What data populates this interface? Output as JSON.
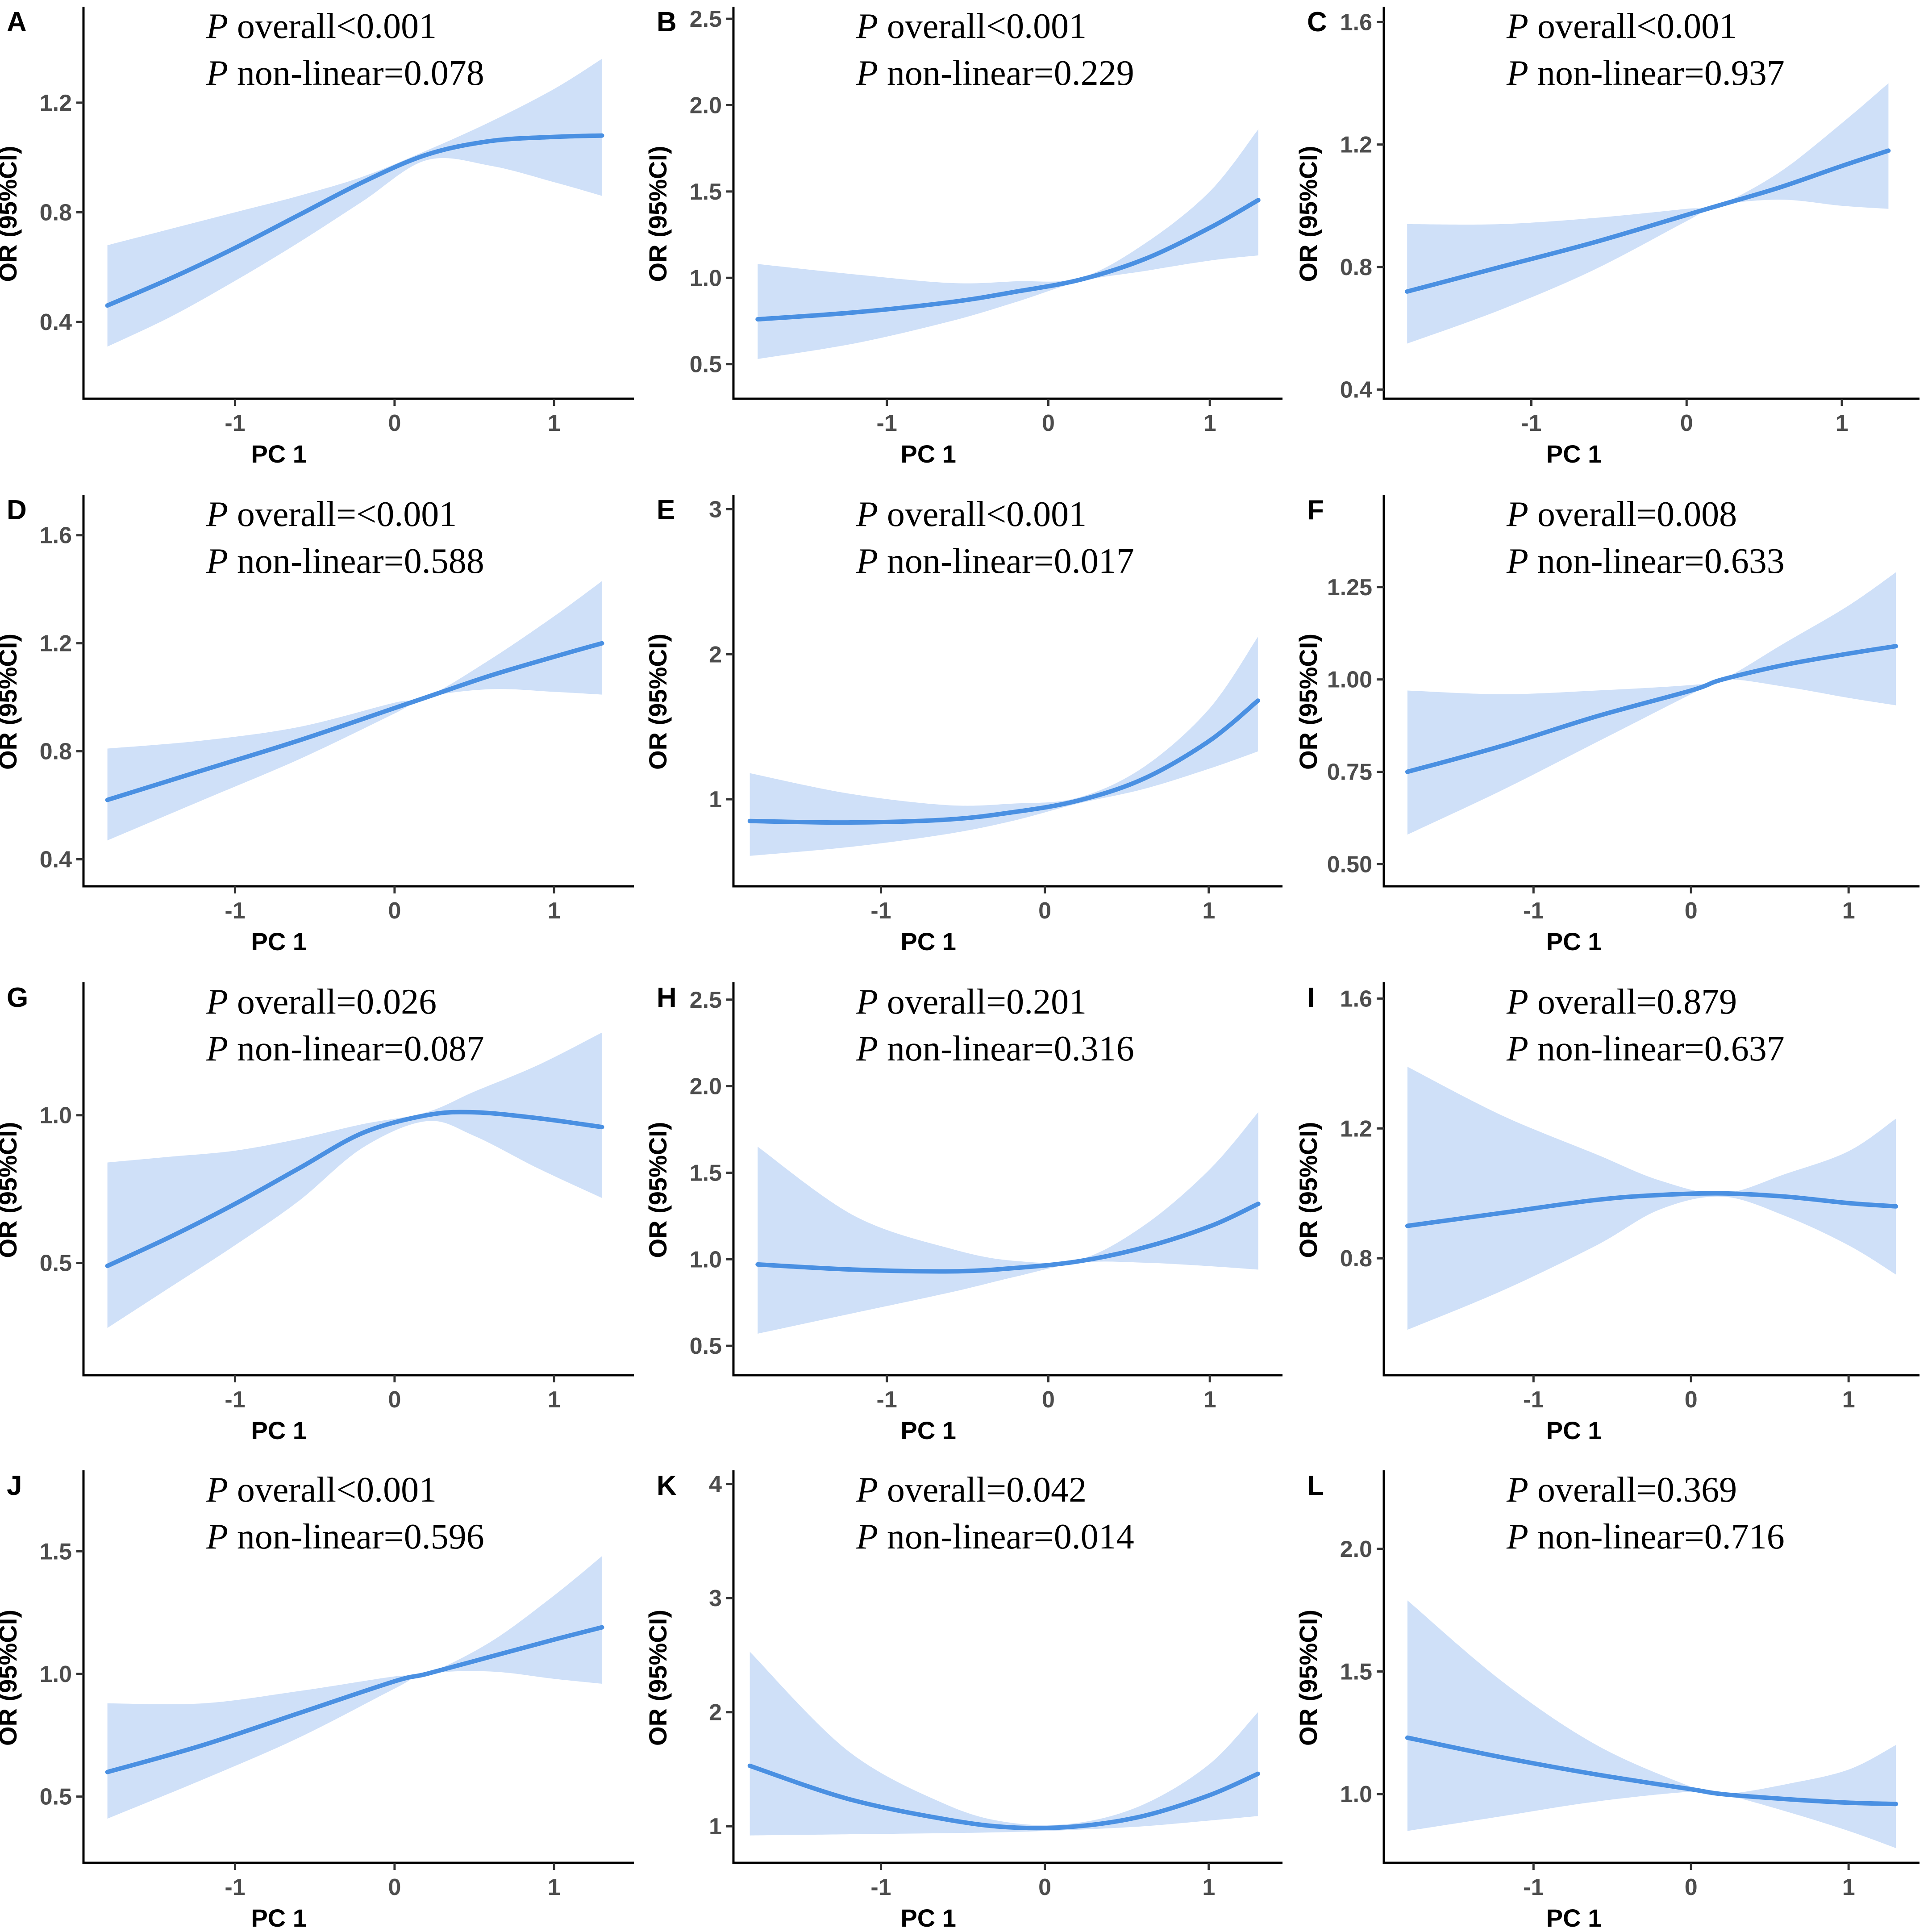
{
  "colors": {
    "line": "#4a90e2",
    "band": "#cfe0f8",
    "axis": "#000000",
    "tick_label": "#4d4d4d"
  },
  "chart_data": [
    {
      "panel": "A",
      "type": "line",
      "xlabel": "PC 1",
      "ylabel": "OR (95%CI)",
      "xlim": [
        -1.95,
        1.5
      ],
      "ylim": [
        0.12,
        1.55
      ],
      "xticks": [
        -1,
        0,
        1
      ],
      "xtick_labels": [
        "-1",
        "0",
        "1"
      ],
      "yticks": [
        0.4,
        0.8,
        1.2
      ],
      "ytick_labels": [
        "0.4",
        "0.8",
        "1.2"
      ],
      "annotation": {
        "p": "P",
        "line1": " overall<0.001",
        "line2": " non-linear=0.078"
      },
      "x": [
        -1.8,
        -1.4,
        -1.0,
        -0.6,
        -0.2,
        0.2,
        0.6,
        1.0,
        1.3
      ],
      "y": [
        0.46,
        0.56,
        0.67,
        0.79,
        0.91,
        1.01,
        1.06,
        1.075,
        1.08
      ],
      "lower": [
        0.31,
        0.42,
        0.55,
        0.69,
        0.84,
        0.99,
        0.97,
        0.91,
        0.86
      ],
      "upper": [
        0.68,
        0.74,
        0.8,
        0.86,
        0.93,
        1.025,
        1.13,
        1.25,
        1.36
      ]
    },
    {
      "panel": "B",
      "type": "line",
      "xlabel": "PC 1",
      "ylabel": "OR (95%CI)",
      "xlim": [
        -1.95,
        1.45
      ],
      "ylim": [
        0.3,
        2.57
      ],
      "xticks": [
        -1,
        0,
        1
      ],
      "xtick_labels": [
        "-1",
        "0",
        "1"
      ],
      "yticks": [
        0.5,
        1.0,
        1.5,
        2.0,
        2.5
      ],
      "ytick_labels": [
        "0.5",
        "1.0",
        "1.5",
        "2.0",
        "2.5"
      ],
      "annotation": {
        "p": "P",
        "line1": " overall<0.001",
        "line2": " non-linear=0.229"
      },
      "x": [
        -1.8,
        -1.2,
        -0.6,
        -0.2,
        0.2,
        0.6,
        1.0,
        1.3
      ],
      "y": [
        0.76,
        0.8,
        0.86,
        0.92,
        0.99,
        1.11,
        1.29,
        1.45
      ],
      "lower": [
        0.53,
        0.62,
        0.75,
        0.86,
        0.98,
        1.04,
        1.1,
        1.13
      ],
      "upper": [
        1.08,
        1.02,
        0.97,
        0.98,
        1.0,
        1.2,
        1.5,
        1.86
      ]
    },
    {
      "panel": "C",
      "type": "line",
      "xlabel": "PC 1",
      "ylabel": "OR (95%CI)",
      "xlim": [
        -1.95,
        1.5
      ],
      "ylim": [
        0.37,
        1.65
      ],
      "xticks": [
        -1,
        0,
        1
      ],
      "xtick_labels": [
        "-1",
        "0",
        "1"
      ],
      "yticks": [
        0.4,
        0.8,
        1.2,
        1.6
      ],
      "ytick_labels": [
        "0.4",
        "0.8",
        "1.2",
        "1.6"
      ],
      "annotation": {
        "p": "P",
        "line1": " overall<0.001",
        "line2": " non-linear=0.937"
      },
      "x": [
        -1.8,
        -1.2,
        -0.6,
        0.0,
        0.2,
        0.6,
        1.0,
        1.3
      ],
      "y": [
        0.72,
        0.8,
        0.88,
        0.97,
        1.0,
        1.06,
        1.13,
        1.18
      ],
      "lower": [
        0.55,
        0.66,
        0.79,
        0.95,
        1.0,
        1.02,
        1.0,
        0.99
      ],
      "upper": [
        0.94,
        0.94,
        0.96,
        0.99,
        1.0,
        1.11,
        1.27,
        1.4
      ]
    },
    {
      "panel": "D",
      "type": "line",
      "xlabel": "PC 1",
      "ylabel": "OR (95%CI)",
      "xlim": [
        -1.95,
        1.5
      ],
      "ylim": [
        0.3,
        1.75
      ],
      "xticks": [
        -1,
        0,
        1
      ],
      "xtick_labels": [
        "-1",
        "0",
        "1"
      ],
      "yticks": [
        0.4,
        0.8,
        1.2,
        1.6
      ],
      "ytick_labels": [
        "0.4",
        "0.8",
        "1.2",
        "1.6"
      ],
      "annotation": {
        "p": "P",
        "line1": " overall=<0.001",
        "line2": " non-linear=0.588"
      },
      "x": [
        -1.8,
        -1.2,
        -0.6,
        0.0,
        0.2,
        0.6,
        1.0,
        1.3
      ],
      "y": [
        0.62,
        0.73,
        0.84,
        0.96,
        1.0,
        1.08,
        1.15,
        1.2
      ],
      "lower": [
        0.47,
        0.62,
        0.77,
        0.94,
        1.0,
        1.03,
        1.02,
        1.01
      ],
      "upper": [
        0.81,
        0.84,
        0.89,
        0.98,
        1.0,
        1.14,
        1.3,
        1.43
      ]
    },
    {
      "panel": "E",
      "type": "line",
      "xlabel": "PC 1",
      "ylabel": "OR (95%CI)",
      "xlim": [
        -1.9,
        1.45
      ],
      "ylim": [
        0.4,
        3.1
      ],
      "xticks": [
        -1,
        0,
        1
      ],
      "xtick_labels": [
        "-1",
        "0",
        "1"
      ],
      "yticks": [
        1,
        2,
        3
      ],
      "ytick_labels": [
        "1",
        "2",
        "3"
      ],
      "annotation": {
        "p": "P",
        "line1": " overall<0.001",
        "line2": " non-linear=0.017"
      },
      "x": [
        -1.8,
        -1.2,
        -0.6,
        -0.2,
        0.2,
        0.6,
        1.0,
        1.3
      ],
      "y": [
        0.85,
        0.84,
        0.86,
        0.91,
        0.99,
        1.14,
        1.4,
        1.68
      ],
      "lower": [
        0.61,
        0.67,
        0.76,
        0.85,
        0.97,
        1.07,
        1.21,
        1.33
      ],
      "upper": [
        1.18,
        1.04,
        0.96,
        0.97,
        1.01,
        1.22,
        1.62,
        2.12
      ]
    },
    {
      "panel": "F",
      "type": "line",
      "xlabel": "PC 1",
      "ylabel": "OR (95%CI)",
      "xlim": [
        -1.95,
        1.45
      ],
      "ylim": [
        0.44,
        1.5
      ],
      "xticks": [
        -1,
        0,
        1
      ],
      "xtick_labels": [
        "-1",
        "0",
        "1"
      ],
      "yticks": [
        0.5,
        0.75,
        1.0,
        1.25
      ],
      "ytick_labels": [
        "0.50",
        "0.75",
        "1.00",
        "1.25"
      ],
      "annotation": {
        "p": "P",
        "line1": " overall=0.008",
        "line2": " non-linear=0.633"
      },
      "x": [
        -1.8,
        -1.2,
        -0.6,
        0.0,
        0.2,
        0.6,
        1.0,
        1.3
      ],
      "y": [
        0.75,
        0.82,
        0.9,
        0.97,
        1.0,
        1.04,
        1.07,
        1.09
      ],
      "lower": [
        0.58,
        0.7,
        0.83,
        0.96,
        1.0,
        0.98,
        0.95,
        0.93
      ],
      "upper": [
        0.97,
        0.96,
        0.97,
        0.985,
        1.0,
        1.1,
        1.2,
        1.29
      ]
    },
    {
      "panel": "G",
      "type": "line",
      "xlabel": "PC 1",
      "ylabel": "OR (95%CI)",
      "xlim": [
        -1.95,
        1.5
      ],
      "ylim": [
        0.12,
        1.45
      ],
      "xticks": [
        -1,
        0,
        1
      ],
      "xtick_labels": [
        "-1",
        "0",
        "1"
      ],
      "yticks": [
        0.5,
        1.0
      ],
      "ytick_labels": [
        "0.5",
        "1.0"
      ],
      "annotation": {
        "p": "P",
        "line1": " overall=0.026",
        "line2": " non-linear=0.087"
      },
      "x": [
        -1.8,
        -1.4,
        -1.0,
        -0.6,
        -0.2,
        0.2,
        0.5,
        0.9,
        1.3
      ],
      "y": [
        0.49,
        0.59,
        0.7,
        0.82,
        0.94,
        1.0,
        1.01,
        0.99,
        0.96
      ],
      "lower": [
        0.28,
        0.42,
        0.56,
        0.71,
        0.89,
        0.98,
        0.93,
        0.82,
        0.72
      ],
      "upper": [
        0.84,
        0.86,
        0.88,
        0.92,
        0.97,
        1.01,
        1.08,
        1.17,
        1.28
      ]
    },
    {
      "panel": "H",
      "type": "line",
      "xlabel": "PC 1",
      "ylabel": "OR (95%CI)",
      "xlim": [
        -1.95,
        1.45
      ],
      "ylim": [
        0.33,
        2.6
      ],
      "xticks": [
        -1,
        0,
        1
      ],
      "xtick_labels": [
        "-1",
        "0",
        "1"
      ],
      "yticks": [
        0.5,
        1.0,
        1.5,
        2.0,
        2.5
      ],
      "ytick_labels": [
        "0.5",
        "1.0",
        "1.5",
        "2.0",
        "2.5"
      ],
      "annotation": {
        "p": "P",
        "line1": " overall=0.201",
        "line2": " non-linear=0.316"
      },
      "x": [
        -1.8,
        -1.2,
        -0.6,
        -0.2,
        0.2,
        0.6,
        1.0,
        1.3
      ],
      "y": [
        0.97,
        0.94,
        0.93,
        0.95,
        0.99,
        1.07,
        1.19,
        1.32
      ],
      "lower": [
        0.57,
        0.69,
        0.81,
        0.9,
        0.98,
        0.98,
        0.96,
        0.94
      ],
      "upper": [
        1.65,
        1.25,
        1.06,
        0.99,
        1.0,
        1.2,
        1.52,
        1.85
      ]
    },
    {
      "panel": "I",
      "type": "line",
      "xlabel": "PC 1",
      "ylabel": "OR (95%CI)",
      "xlim": [
        -1.95,
        1.45
      ],
      "ylim": [
        0.44,
        1.65
      ],
      "xticks": [
        -1,
        0,
        1
      ],
      "xtick_labels": [
        "-1",
        "0",
        "1"
      ],
      "yticks": [
        0.8,
        1.2,
        1.6
      ],
      "ytick_labels": [
        "0.8",
        "1.2",
        "1.6"
      ],
      "annotation": {
        "p": "P",
        "line1": " overall=0.879",
        "line2": " non-linear=0.637"
      },
      "x": [
        -1.8,
        -1.2,
        -0.6,
        -0.2,
        0.2,
        0.6,
        1.0,
        1.3
      ],
      "y": [
        0.9,
        0.94,
        0.98,
        0.995,
        1.0,
        0.99,
        0.97,
        0.96
      ],
      "lower": [
        0.58,
        0.7,
        0.84,
        0.95,
        0.99,
        0.93,
        0.84,
        0.75
      ],
      "upper": [
        1.39,
        1.24,
        1.12,
        1.04,
        1.0,
        1.06,
        1.13,
        1.23
      ]
    },
    {
      "panel": "J",
      "type": "line",
      "xlabel": "PC 1",
      "ylabel": "OR (95%CI)",
      "xlim": [
        -1.95,
        1.5
      ],
      "ylim": [
        0.23,
        1.83
      ],
      "xticks": [
        -1,
        0,
        1
      ],
      "xtick_labels": [
        "-1",
        "0",
        "1"
      ],
      "yticks": [
        0.5,
        1.0,
        1.5
      ],
      "ytick_labels": [
        "0.5",
        "1.0",
        "1.5"
      ],
      "annotation": {
        "p": "P",
        "line1": " overall<0.001",
        "line2": " non-linear=0.596"
      },
      "x": [
        -1.8,
        -1.2,
        -0.6,
        0.0,
        0.2,
        0.6,
        1.0,
        1.3
      ],
      "y": [
        0.6,
        0.71,
        0.84,
        0.97,
        1.0,
        1.07,
        1.14,
        1.19
      ],
      "lower": [
        0.41,
        0.57,
        0.74,
        0.94,
        1.0,
        1.01,
        0.98,
        0.96
      ],
      "upper": [
        0.88,
        0.88,
        0.93,
        0.99,
        1.0,
        1.13,
        1.32,
        1.48
      ]
    },
    {
      "panel": "K",
      "type": "line",
      "xlabel": "PC 1",
      "ylabel": "OR (95%CI)",
      "xlim": [
        -1.9,
        1.45
      ],
      "ylim": [
        0.68,
        4.12
      ],
      "xticks": [
        -1,
        0,
        1
      ],
      "xtick_labels": [
        "-1",
        "0",
        "1"
      ],
      "yticks": [
        1,
        2,
        3,
        4
      ],
      "ytick_labels": [
        "1",
        "2",
        "3",
        "4"
      ],
      "annotation": {
        "p": "P",
        "line1": " overall=0.042",
        "line2": " non-linear=0.014"
      },
      "x": [
        -1.8,
        -1.2,
        -0.6,
        -0.2,
        0.2,
        0.6,
        1.0,
        1.3
      ],
      "y": [
        1.53,
        1.24,
        1.06,
        0.99,
        1.0,
        1.09,
        1.27,
        1.46
      ],
      "lower": [
        0.92,
        0.93,
        0.94,
        0.95,
        0.97,
        1.0,
        1.05,
        1.09
      ],
      "upper": [
        2.53,
        1.66,
        1.19,
        1.03,
        1.03,
        1.19,
        1.54,
        2.0
      ]
    },
    {
      "panel": "L",
      "type": "line",
      "xlabel": "PC 1",
      "ylabel": "OR (95%CI)",
      "xlim": [
        -1.95,
        1.45
      ],
      "ylim": [
        0.72,
        2.32
      ],
      "xticks": [
        -1,
        0,
        1
      ],
      "xtick_labels": [
        "-1",
        "0",
        "1"
      ],
      "yticks": [
        1.0,
        1.5,
        2.0
      ],
      "ytick_labels": [
        "1.0",
        "1.5",
        "2.0"
      ],
      "annotation": {
        "p": "P",
        "line1": " overall=0.369",
        "line2": " non-linear=0.716"
      },
      "x": [
        -1.8,
        -1.2,
        -0.6,
        0.0,
        0.2,
        0.6,
        1.0,
        1.3
      ],
      "y": [
        1.23,
        1.15,
        1.08,
        1.02,
        1.0,
        0.98,
        0.965,
        0.96
      ],
      "lower": [
        0.85,
        0.91,
        0.97,
        1.01,
        1.0,
        0.93,
        0.85,
        0.78
      ],
      "upper": [
        1.79,
        1.46,
        1.2,
        1.03,
        1.0,
        1.04,
        1.1,
        1.2
      ]
    }
  ]
}
